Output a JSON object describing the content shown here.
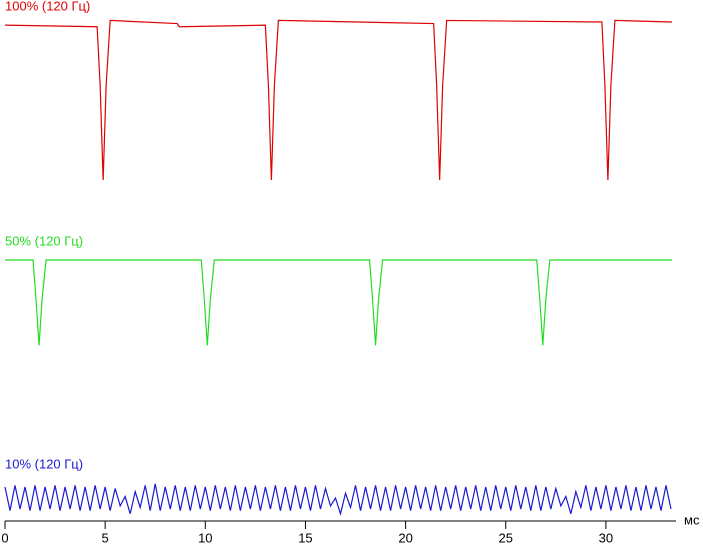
{
  "chart_data": {
    "type": "line",
    "x_label": "мс",
    "xlim": [
      0,
      33.5
    ],
    "xticks": [
      0,
      5,
      10,
      15,
      20,
      25,
      30
    ],
    "series": [
      {
        "name": "100% (120 Гц)",
        "color": "#e00000",
        "x": [
          0,
          4.6,
          4.75,
          4.9,
          5.05,
          5.25,
          8.6,
          8.7,
          13.0,
          13.15,
          13.3,
          13.45,
          13.65,
          21.4,
          21.55,
          21.7,
          21.85,
          22.05,
          29.8,
          29.95,
          30.1,
          30.25,
          30.45,
          33.3
        ],
        "values": [
          98,
          97,
          60,
          0,
          60,
          101,
          99,
          97,
          98,
          60,
          0,
          60,
          101,
          99,
          60,
          0,
          60,
          101,
          100,
          60,
          0,
          60,
          101,
          100
        ]
      },
      {
        "name": "50% (120 Гц)",
        "color": "#22dd22",
        "x": [
          0,
          1.4,
          1.55,
          1.7,
          1.85,
          2.05,
          9.8,
          9.95,
          10.1,
          10.25,
          10.45,
          18.2,
          18.35,
          18.5,
          18.65,
          18.85,
          26.55,
          26.7,
          26.85,
          27.0,
          27.2,
          33.3
        ],
        "values": [
          100,
          100,
          75,
          46,
          75,
          100,
          100,
          75,
          46,
          75,
          100,
          100,
          75,
          46,
          75,
          100,
          100,
          75,
          46,
          75,
          100,
          100
        ]
      },
      {
        "name": "10% (120 Гц)",
        "color": "#1a1ad0",
        "x": [
          0,
          0.25,
          0.5,
          0.75,
          1,
          1.25,
          1.5,
          1.75,
          2,
          2.25,
          2.5,
          2.75,
          3,
          3.25,
          3.5,
          3.75,
          4,
          4.25,
          4.5,
          4.75,
          5,
          5.25,
          5.5,
          5.75,
          6,
          6.25,
          6.5,
          6.75,
          7,
          7.25,
          7.5,
          7.75,
          8,
          8.25,
          8.5,
          8.75,
          9,
          9.25,
          9.5,
          9.75,
          10,
          10.25,
          10.5,
          10.75,
          11,
          11.25,
          11.5,
          11.75,
          12,
          12.25,
          12.5,
          12.75,
          13,
          13.25,
          13.5,
          13.75,
          14,
          14.25,
          14.5,
          14.75,
          15,
          15.25,
          15.5,
          15.75,
          16,
          16.25,
          16.5,
          16.75,
          17,
          17.25,
          17.5,
          17.75,
          18,
          18.25,
          18.5,
          18.75,
          19,
          19.25,
          19.5,
          19.75,
          20,
          20.25,
          20.5,
          20.75,
          21,
          21.25,
          21.5,
          21.75,
          22,
          22.25,
          22.5,
          22.75,
          23,
          23.25,
          23.5,
          23.75,
          24,
          24.25,
          24.5,
          24.75,
          25,
          25.25,
          25.5,
          25.75,
          26,
          26.25,
          26.5,
          26.75,
          27,
          27.25,
          27.5,
          27.75,
          28,
          28.25,
          28.5,
          28.75,
          29,
          29.25,
          29.5,
          29.75,
          30,
          30.25,
          30.5,
          30.75,
          31,
          31.25,
          31.5,
          31.75,
          32,
          32.25,
          32.5,
          32.75,
          33,
          33.25
        ],
        "values": [
          107,
          92,
          108,
          93,
          107,
          92,
          108,
          92,
          107,
          93,
          108,
          92,
          107,
          93,
          108,
          92,
          107,
          92,
          108,
          93,
          107,
          92,
          106,
          95,
          101,
          90,
          104,
          94,
          108,
          92,
          109,
          92,
          107,
          93,
          108,
          92,
          107,
          92,
          108,
          93,
          107,
          92,
          108,
          93,
          107,
          92,
          108,
          92,
          107,
          93,
          108,
          92,
          107,
          93,
          108,
          92,
          107,
          92,
          108,
          93,
          107,
          92,
          108,
          93,
          106,
          95,
          100,
          90,
          103,
          94,
          108,
          92,
          107,
          93,
          108,
          92,
          107,
          92,
          108,
          93,
          107,
          92,
          108,
          93,
          107,
          92,
          108,
          92,
          107,
          93,
          108,
          92,
          107,
          93,
          108,
          92,
          107,
          92,
          108,
          93,
          107,
          92,
          108,
          93,
          107,
          92,
          108,
          92,
          107,
          93,
          106,
          95,
          101,
          90,
          104,
          94,
          108,
          92,
          107,
          93,
          108,
          92,
          107,
          93,
          108,
          92,
          107,
          92,
          108,
          93,
          107,
          92,
          108,
          93
        ]
      }
    ]
  }
}
